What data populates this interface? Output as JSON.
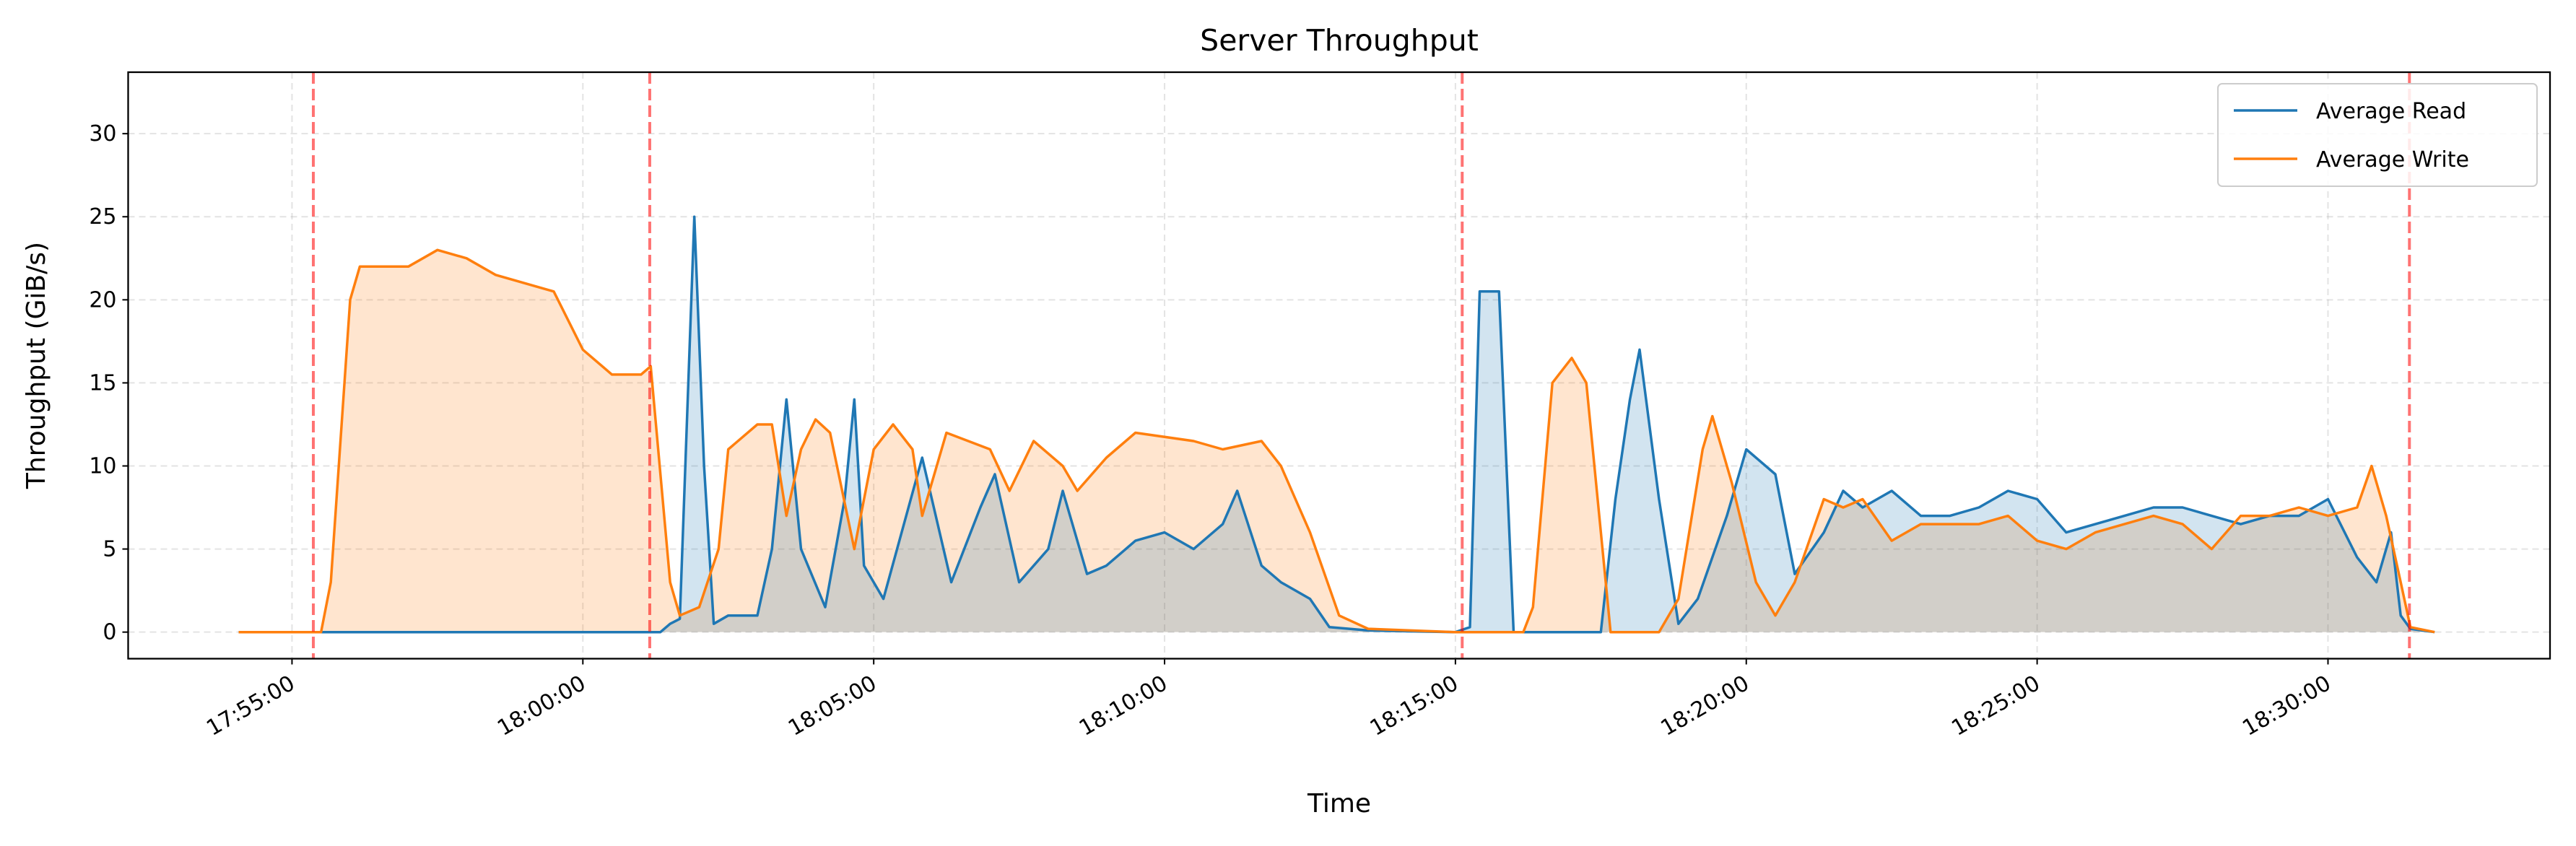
{
  "chart_data": {
    "type": "line",
    "title": "Server Throughput",
    "xlabel": "Time",
    "ylabel": "Throughput (GiB/s)",
    "xlim": [
      "17:52:11",
      "18:33:49"
    ],
    "ylim": [
      -1.6,
      33.7
    ],
    "x_ticks": [
      "17:55:00",
      "18:00:00",
      "18:05:00",
      "18:10:00",
      "18:15:00",
      "18:20:00",
      "18:25:00",
      "18:30:00"
    ],
    "y_ticks": [
      0,
      5,
      10,
      15,
      20,
      25,
      30
    ],
    "grid": true,
    "legend_position": "top-right",
    "vertical_markers": {
      "color": "#ff0000",
      "style": "dashed",
      "times": [
        "17:55:22",
        "18:01:09",
        "18:15:07",
        "18:31:24"
      ]
    },
    "series": [
      {
        "name": "Average Read",
        "color": "#1f77b4",
        "fill": true,
        "points": [
          [
            "17:54:05",
            0
          ],
          [
            "18:01:20",
            0
          ],
          [
            "18:01:30",
            0.5
          ],
          [
            "18:01:40",
            0.8
          ],
          [
            "18:01:55",
            25
          ],
          [
            "18:02:05",
            10
          ],
          [
            "18:02:15",
            0.5
          ],
          [
            "18:02:30",
            1
          ],
          [
            "18:03:00",
            1
          ],
          [
            "18:03:15",
            5
          ],
          [
            "18:03:30",
            14
          ],
          [
            "18:03:45",
            5
          ],
          [
            "18:04:10",
            1.5
          ],
          [
            "18:04:30",
            8
          ],
          [
            "18:04:40",
            14
          ],
          [
            "18:04:50",
            4
          ],
          [
            "18:05:10",
            2
          ],
          [
            "18:05:50",
            10.5
          ],
          [
            "18:06:20",
            3
          ],
          [
            "18:06:50",
            7.5
          ],
          [
            "18:07:05",
            9.5
          ],
          [
            "18:07:30",
            3
          ],
          [
            "18:08:00",
            5
          ],
          [
            "18:08:15",
            8.5
          ],
          [
            "18:08:40",
            3.5
          ],
          [
            "18:09:00",
            4
          ],
          [
            "18:09:30",
            5.5
          ],
          [
            "18:10:00",
            6
          ],
          [
            "18:10:30",
            5
          ],
          [
            "18:11:00",
            6.5
          ],
          [
            "18:11:15",
            8.5
          ],
          [
            "18:11:40",
            4
          ],
          [
            "18:12:00",
            3
          ],
          [
            "18:12:30",
            2
          ],
          [
            "18:12:50",
            0.3
          ],
          [
            "18:13:30",
            0.1
          ],
          [
            "18:15:00",
            0
          ],
          [
            "18:15:15",
            0.3
          ],
          [
            "18:15:25",
            20.5
          ],
          [
            "18:15:45",
            20.5
          ],
          [
            "18:16:00",
            0
          ],
          [
            "18:17:30",
            0
          ],
          [
            "18:17:45",
            8
          ],
          [
            "18:18:00",
            14
          ],
          [
            "18:18:10",
            17
          ],
          [
            "18:18:30",
            8
          ],
          [
            "18:18:50",
            0.5
          ],
          [
            "18:19:10",
            2
          ],
          [
            "18:19:40",
            7
          ],
          [
            "18:20:00",
            11
          ],
          [
            "18:20:30",
            9.5
          ],
          [
            "18:20:50",
            3.5
          ],
          [
            "18:21:20",
            6
          ],
          [
            "18:21:40",
            8.5
          ],
          [
            "18:22:00",
            7.5
          ],
          [
            "18:22:30",
            8.5
          ],
          [
            "18:23:00",
            7
          ],
          [
            "18:23:30",
            7
          ],
          [
            "18:24:00",
            7.5
          ],
          [
            "18:24:30",
            8.5
          ],
          [
            "18:25:00",
            8
          ],
          [
            "18:25:30",
            6
          ],
          [
            "18:26:00",
            6.5
          ],
          [
            "18:26:30",
            7
          ],
          [
            "18:27:00",
            7.5
          ],
          [
            "18:27:30",
            7.5
          ],
          [
            "18:28:00",
            7
          ],
          [
            "18:28:30",
            6.5
          ],
          [
            "18:29:00",
            7
          ],
          [
            "18:29:30",
            7
          ],
          [
            "18:30:00",
            8
          ],
          [
            "18:30:30",
            4.5
          ],
          [
            "18:30:50",
            3
          ],
          [
            "18:31:05",
            6
          ],
          [
            "18:31:15",
            1
          ],
          [
            "18:31:25",
            0.2
          ],
          [
            "18:31:50",
            0
          ]
        ]
      },
      {
        "name": "Average Write",
        "color": "#ff7f0e",
        "fill": true,
        "points": [
          [
            "17:54:05",
            0
          ],
          [
            "17:55:30",
            0
          ],
          [
            "17:55:40",
            3
          ],
          [
            "17:56:00",
            20
          ],
          [
            "17:56:10",
            22
          ],
          [
            "17:57:00",
            22
          ],
          [
            "17:57:30",
            23
          ],
          [
            "17:58:00",
            22.5
          ],
          [
            "17:58:30",
            21.5
          ],
          [
            "17:59:30",
            20.5
          ],
          [
            "18:00:00",
            17
          ],
          [
            "18:00:30",
            15.5
          ],
          [
            "18:01:00",
            15.5
          ],
          [
            "18:01:10",
            16
          ],
          [
            "18:01:30",
            3
          ],
          [
            "18:01:40",
            1
          ],
          [
            "18:02:00",
            1.5
          ],
          [
            "18:02:20",
            5
          ],
          [
            "18:02:30",
            11
          ],
          [
            "18:03:00",
            12.5
          ],
          [
            "18:03:15",
            12.5
          ],
          [
            "18:03:30",
            7
          ],
          [
            "18:03:45",
            11
          ],
          [
            "18:04:00",
            12.8
          ],
          [
            "18:04:15",
            12
          ],
          [
            "18:04:40",
            5
          ],
          [
            "18:05:00",
            11
          ],
          [
            "18:05:20",
            12.5
          ],
          [
            "18:05:40",
            11
          ],
          [
            "18:05:50",
            7
          ],
          [
            "18:06:15",
            12
          ],
          [
            "18:07:00",
            11
          ],
          [
            "18:07:20",
            8.5
          ],
          [
            "18:07:45",
            11.5
          ],
          [
            "18:08:15",
            10
          ],
          [
            "18:08:30",
            8.5
          ],
          [
            "18:09:00",
            10.5
          ],
          [
            "18:09:30",
            12
          ],
          [
            "18:10:30",
            11.5
          ],
          [
            "18:11:00",
            11
          ],
          [
            "18:11:40",
            11.5
          ],
          [
            "18:12:00",
            10
          ],
          [
            "18:12:30",
            6
          ],
          [
            "18:13:00",
            1
          ],
          [
            "18:13:30",
            0.2
          ],
          [
            "18:15:00",
            0
          ],
          [
            "18:16:10",
            0
          ],
          [
            "18:16:20",
            1.5
          ],
          [
            "18:16:40",
            15
          ],
          [
            "18:17:00",
            16.5
          ],
          [
            "18:17:15",
            15
          ],
          [
            "18:17:40",
            0
          ],
          [
            "18:18:30",
            0
          ],
          [
            "18:18:50",
            2
          ],
          [
            "18:19:15",
            11
          ],
          [
            "18:19:25",
            13
          ],
          [
            "18:19:45",
            9
          ],
          [
            "18:20:10",
            3
          ],
          [
            "18:20:30",
            1
          ],
          [
            "18:20:50",
            3
          ],
          [
            "18:21:20",
            8
          ],
          [
            "18:21:40",
            7.5
          ],
          [
            "18:22:00",
            8
          ],
          [
            "18:22:30",
            5.5
          ],
          [
            "18:23:00",
            6.5
          ],
          [
            "18:24:00",
            6.5
          ],
          [
            "18:24:30",
            7
          ],
          [
            "18:25:00",
            5.5
          ],
          [
            "18:25:30",
            5
          ],
          [
            "18:26:00",
            6
          ],
          [
            "18:27:00",
            7
          ],
          [
            "18:27:30",
            6.5
          ],
          [
            "18:28:00",
            5
          ],
          [
            "18:28:30",
            7
          ],
          [
            "18:29:00",
            7
          ],
          [
            "18:29:30",
            7.5
          ],
          [
            "18:30:00",
            7
          ],
          [
            "18:30:30",
            7.5
          ],
          [
            "18:30:45",
            10
          ],
          [
            "18:31:00",
            7
          ],
          [
            "18:31:15",
            3
          ],
          [
            "18:31:25",
            0.3
          ],
          [
            "18:31:50",
            0
          ]
        ]
      }
    ]
  }
}
